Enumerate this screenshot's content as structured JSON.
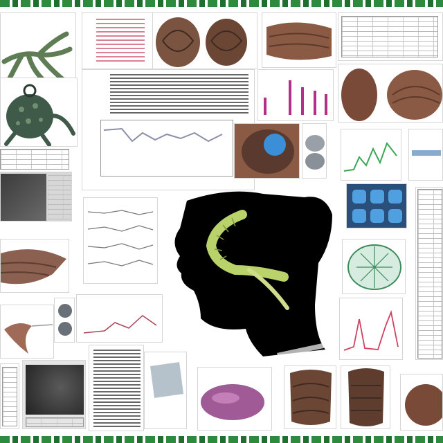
{
  "scene": {
    "description_tags": [
      "collage",
      "scientific-figures",
      "specimen-photos",
      "head-silhouette"
    ],
    "colors": {
      "border_green": "#2e8b3d",
      "silhouette": "#000000",
      "worm": "#b9d36a",
      "specimen_brown": "#7a5440",
      "chart_line_green": "#3aa655",
      "chart_line_red": "#d04060",
      "bar_magenta": "#b0308c",
      "scan_blue": "#3a8fd8"
    },
    "icons": [
      "antler-specimen",
      "spiny-specimen",
      "cell-cluster",
      "leaf-specimen",
      "head-silhouette",
      "worm",
      "pink-slug"
    ]
  }
}
